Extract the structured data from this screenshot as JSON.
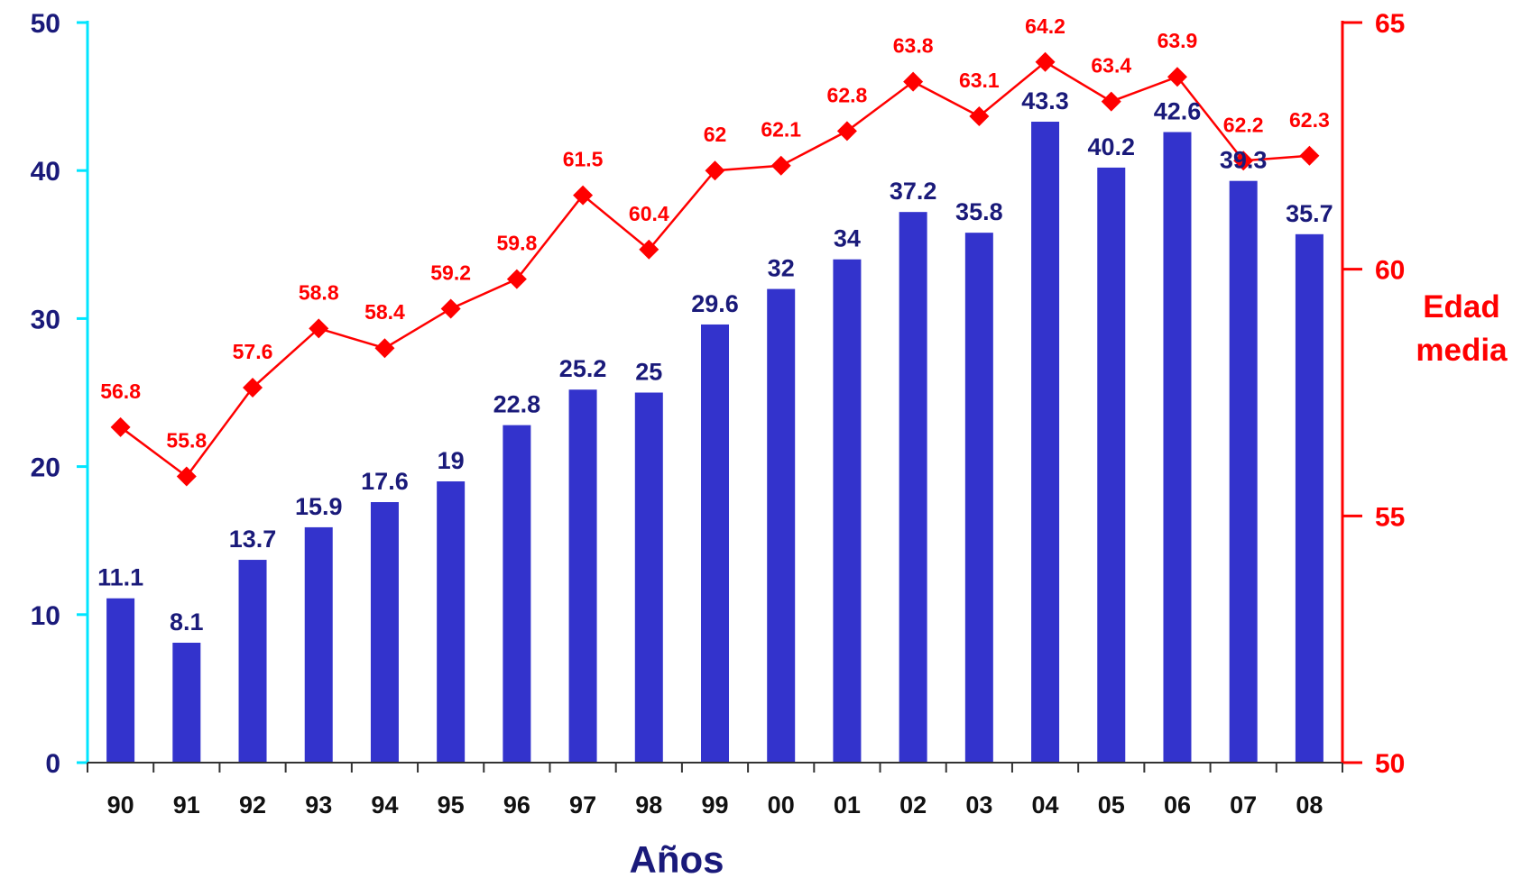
{
  "chart_data": {
    "type": "bar",
    "categories": [
      "90",
      "91",
      "92",
      "93",
      "94",
      "95",
      "96",
      "97",
      "98",
      "99",
      "00",
      "01",
      "02",
      "03",
      "04",
      "05",
      "06",
      "07",
      "08"
    ],
    "series": [
      {
        "type": "bar",
        "axis": "left",
        "color": "#3333cc",
        "values": [
          11.1,
          8.1,
          13.7,
          15.9,
          17.6,
          19,
          22.8,
          25.2,
          25,
          29.6,
          32,
          34,
          37.2,
          35.8,
          43.3,
          40.2,
          42.6,
          39.3,
          35.7
        ],
        "labels": [
          "11.1",
          "8.1",
          "13.7",
          "15.9",
          "17.6",
          "19",
          "22.8",
          "25.2",
          "25",
          "29.6",
          "32",
          "34",
          "37.2",
          "35.8",
          "43.3",
          "40.2",
          "42.6",
          "39.3",
          "35.7"
        ]
      },
      {
        "type": "line",
        "axis": "right",
        "color": "#ff0000",
        "marker": "diamond",
        "values": [
          56.8,
          55.8,
          57.6,
          58.8,
          58.4,
          59.2,
          59.8,
          61.5,
          60.4,
          62,
          62.1,
          62.8,
          63.8,
          63.1,
          64.2,
          63.4,
          63.9,
          62.2,
          62.3
        ],
        "labels": [
          "56.8",
          "55.8",
          "57.6",
          "58.8",
          "58.4",
          "59.2",
          "59.8",
          "61.5",
          "60.4",
          "62",
          "62.1",
          "62.8",
          "63.8",
          "63.1",
          "64.2",
          "63.4",
          "63.9",
          "62.2",
          "62.3"
        ]
      }
    ],
    "xlabel": "Años",
    "ylabel": "",
    "y2label": [
      "Edad",
      "media"
    ],
    "ylim": [
      0,
      50
    ],
    "y2lim": [
      50,
      65
    ],
    "yticks": [
      0,
      10,
      20,
      30,
      40,
      50
    ],
    "yticks_labels": [
      "0",
      "10",
      "20",
      "30",
      "40",
      "50"
    ],
    "y2ticks": [
      50,
      55,
      60,
      65
    ],
    "y2ticks_labels": [
      "50",
      "55",
      "60",
      "65"
    ],
    "grid": false,
    "legend": "none",
    "colors": {
      "left_axis": "#00e5ff",
      "right_axis": "#ff0000",
      "bars": "#3333cc",
      "line": "#ff0000"
    }
  }
}
